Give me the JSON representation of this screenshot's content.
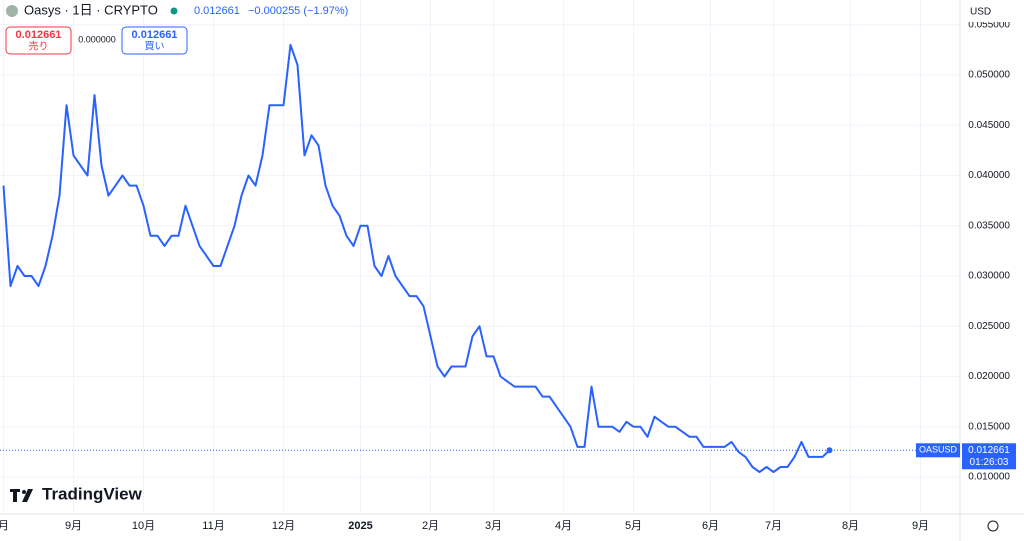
{
  "header": {
    "title": "Oasys · 1日 · CRYPTO",
    "price": "0.012661",
    "change": "−0.000255 (−1.97%)",
    "sell_price": "0.012661",
    "sell_label": "売り",
    "spread": "0.000000",
    "buy_price": "0.012661",
    "buy_label": "買い",
    "currency": "USD",
    "brand": "TradingView"
  },
  "chart_data": {
    "type": "line",
    "categories": [
      "月",
      null,
      null,
      null,
      null,
      null,
      null,
      null,
      null,
      null,
      "9月",
      null,
      null,
      null,
      null,
      null,
      null,
      null,
      null,
      null,
      "10月",
      null,
      null,
      null,
      null,
      null,
      null,
      null,
      null,
      null,
      "11月",
      null,
      null,
      null,
      null,
      null,
      null,
      null,
      null,
      null,
      "12月",
      null,
      null,
      null,
      null,
      null,
      null,
      null,
      null,
      null,
      null,
      "2025",
      null,
      null,
      null,
      null,
      null,
      null,
      null,
      null,
      null,
      "2月",
      null,
      null,
      null,
      null,
      null,
      null,
      null,
      null,
      "3月",
      null,
      null,
      null,
      null,
      null,
      null,
      null,
      null,
      null,
      "4月",
      null,
      null,
      null,
      null,
      null,
      null,
      null,
      null,
      null,
      "5月",
      null,
      null,
      null,
      null,
      null,
      null,
      null,
      null,
      null,
      null,
      "6月",
      null,
      null,
      null,
      null,
      null,
      null,
      null,
      null,
      "7月",
      null,
      null,
      null,
      null,
      null,
      null,
      null,
      null,
      null,
      null,
      "8月",
      null,
      null,
      null,
      null,
      null,
      null,
      null,
      null,
      null,
      "9月",
      null,
      null,
      null,
      null,
      null
    ],
    "series": [
      {
        "name": "OASUSD",
        "color": "#2962ff",
        "values": [
          0.039,
          0.029,
          0.031,
          0.03,
          0.03,
          0.029,
          0.031,
          0.034,
          0.038,
          0.047,
          0.042,
          0.041,
          0.04,
          0.048,
          0.041,
          0.038,
          0.039,
          0.04,
          0.039,
          0.039,
          0.037,
          0.034,
          0.034,
          0.033,
          0.034,
          0.034,
          0.037,
          0.035,
          0.033,
          0.032,
          0.031,
          0.031,
          0.033,
          0.035,
          0.038,
          0.04,
          0.039,
          0.042,
          0.047,
          0.047,
          0.047,
          0.053,
          0.051,
          0.042,
          0.044,
          0.043,
          0.039,
          0.037,
          0.036,
          0.034,
          0.033,
          0.035,
          0.035,
          0.031,
          0.03,
          0.032,
          0.03,
          0.029,
          0.028,
          0.028,
          0.027,
          0.024,
          0.021,
          0.02,
          0.021,
          0.021,
          0.021,
          0.024,
          0.025,
          0.022,
          0.022,
          0.02,
          0.0195,
          0.019,
          0.019,
          0.019,
          0.019,
          0.018,
          0.018,
          0.017,
          0.016,
          0.015,
          0.013,
          0.013,
          0.019,
          0.015,
          0.015,
          0.015,
          0.0145,
          0.0155,
          0.015,
          0.015,
          0.014,
          0.016,
          0.0155,
          0.015,
          0.015,
          0.0145,
          0.014,
          0.014,
          0.013,
          0.013,
          0.013,
          0.013,
          0.0135,
          0.0125,
          0.012,
          0.011,
          0.0105,
          0.011,
          0.0105,
          0.011,
          0.011,
          0.012,
          0.0135,
          0.012,
          0.012,
          0.012,
          0.012661,
          null,
          null,
          null,
          null,
          null,
          null,
          null,
          null,
          null,
          null,
          null,
          null,
          null,
          null,
          null,
          null,
          null,
          null
        ]
      }
    ],
    "price_label": {
      "price": "0.012661",
      "countdown": "01:26:03"
    },
    "ylim": [
      0.00652,
      0.05468
    ],
    "yticks": [
      {
        "value": 0.01,
        "label": "0.010000"
      },
      {
        "value": 0.015,
        "label": "0.015000"
      },
      {
        "value": 0.02,
        "label": "0.020000"
      },
      {
        "value": 0.025,
        "label": "0.025000"
      },
      {
        "value": 0.03,
        "label": "0.030000"
      },
      {
        "value": 0.035,
        "label": "0.035000"
      },
      {
        "value": 0.04,
        "label": "0.040000"
      },
      {
        "value": 0.045,
        "label": "0.045000"
      },
      {
        "value": 0.05,
        "label": "0.050000"
      },
      {
        "value": 0.055,
        "label": "0.055000"
      }
    ],
    "grid": true
  }
}
